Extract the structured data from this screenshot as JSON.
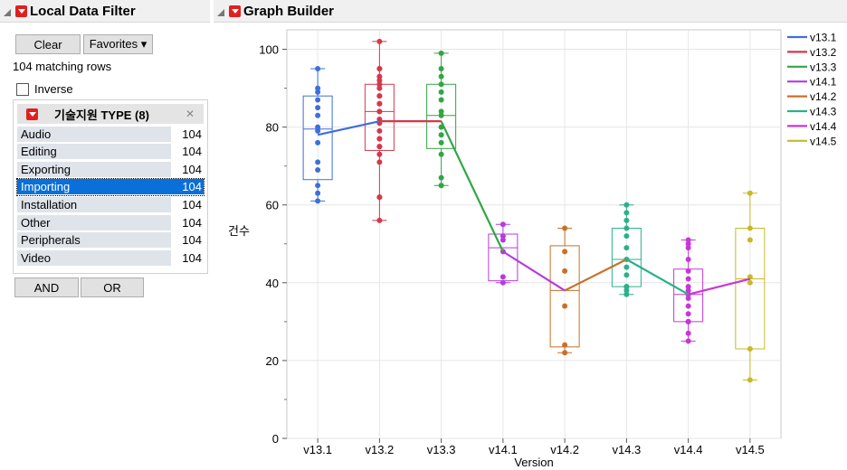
{
  "filter_panel": {
    "title": "Local Data Filter",
    "clear_label": "Clear",
    "favorites_label": "Favorites ▾",
    "matching_rows": "104 matching rows",
    "inverse_label": "Inverse",
    "column_title": "기술지원 TYPE (8)",
    "close_glyph": "✕",
    "items": [
      {
        "label": "Audio",
        "count": "104"
      },
      {
        "label": "Editing",
        "count": "104"
      },
      {
        "label": "Exporting",
        "count": "104"
      },
      {
        "label": "Importing",
        "count": "104"
      },
      {
        "label": "Installation",
        "count": "104"
      },
      {
        "label": "Other",
        "count": "104"
      },
      {
        "label": "Peripherals",
        "count": "104"
      },
      {
        "label": "Video",
        "count": "104"
      }
    ],
    "selected_item": "Importing",
    "and_label": "AND",
    "or_label": "OR"
  },
  "graph_panel": {
    "title": "Graph Builder"
  },
  "chart_data": {
    "type": "box",
    "xlabel": "Version",
    "ylabel": "건수",
    "ylim": [
      0,
      105
    ],
    "yticks": [
      0,
      20,
      40,
      60,
      80,
      100
    ],
    "grid": true,
    "legend_position": "right",
    "categories": [
      "v13.1",
      "v13.2",
      "v13.3",
      "v14.1",
      "v14.2",
      "v14.3",
      "v14.4",
      "v14.5"
    ],
    "series": [
      {
        "name": "v13.1",
        "color": "#3f6fd8",
        "min": 61,
        "q1": 66.5,
        "median": 79.5,
        "q3": 88,
        "max": 95,
        "mean": 78,
        "points": [
          61,
          63,
          65,
          69,
          71,
          76,
          79,
          80,
          83,
          85,
          87,
          89,
          90,
          95
        ]
      },
      {
        "name": "v13.2",
        "color": "#d5384a",
        "min": 56,
        "q1": 74,
        "median": 84,
        "q3": 91,
        "max": 102,
        "mean": 81.5,
        "points": [
          56,
          62,
          62,
          71,
          73,
          75,
          75,
          77,
          77,
          79,
          81,
          82,
          84,
          84,
          86,
          86,
          88,
          88,
          90,
          91,
          92,
          93,
          95,
          95,
          102
        ]
      },
      {
        "name": "v13.3",
        "color": "#32a544",
        "min": 65,
        "q1": 74.5,
        "median": 83,
        "q3": 91,
        "max": 99,
        "mean": 81.5,
        "points": [
          65,
          65,
          67,
          73,
          76,
          78,
          80,
          83,
          84,
          87,
          89,
          91,
          93,
          95,
          99
        ]
      },
      {
        "name": "v14.1",
        "color": "#b53be0",
        "min": 40,
        "q1": 40.5,
        "median": 49,
        "q3": 52.5,
        "max": 55,
        "mean": 48,
        "points": [
          40,
          41.5,
          48,
          51,
          52,
          55
        ]
      },
      {
        "name": "v14.2",
        "color": "#c8702a",
        "min": 22,
        "q1": 23.5,
        "median": 38,
        "q3": 49.5,
        "max": 54,
        "mean": 38,
        "points": [
          22,
          24,
          34,
          43,
          48,
          54
        ]
      },
      {
        "name": "v14.3",
        "color": "#2bb08a",
        "min": 37,
        "q1": 39,
        "median": 46,
        "q3": 54,
        "max": 60,
        "mean": 46,
        "points": [
          37,
          38,
          39,
          39,
          42,
          44,
          46,
          49,
          52,
          54,
          56,
          58,
          60
        ]
      },
      {
        "name": "v14.4",
        "color": "#c936d8",
        "min": 25,
        "q1": 30,
        "median": 37,
        "q3": 43.5,
        "max": 51,
        "mean": 37,
        "points": [
          25,
          27,
          30,
          30,
          30,
          32,
          34,
          36,
          37,
          37,
          38,
          39,
          41,
          43,
          46,
          49,
          50,
          51
        ]
      },
      {
        "name": "v14.5",
        "color": "#c8b82a",
        "min": 15,
        "q1": 23,
        "median": 41,
        "q3": 54,
        "max": 63,
        "mean": 41,
        "points": [
          15,
          23,
          40,
          41.5,
          51,
          54,
          63
        ]
      }
    ]
  }
}
